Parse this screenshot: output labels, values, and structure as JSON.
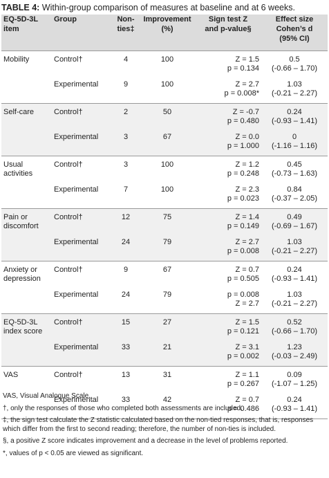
{
  "caption": {
    "label": "TABLE 4:",
    "text": " Within-group comparison of measures at baseline and at 6 weeks."
  },
  "headers": {
    "item": [
      "EQ-5D-3L",
      "item"
    ],
    "group": "Group",
    "nonties": [
      "Non-",
      "ties‡"
    ],
    "improvement": [
      "Improvement",
      "(%)"
    ],
    "signtest": [
      "Sign test Z",
      "and p-value§"
    ],
    "effect": [
      "Effect size",
      "Cohen’s d",
      "(95% CI)"
    ]
  },
  "rows": [
    {
      "item": [
        "Mobility"
      ],
      "control": {
        "group": "Control†",
        "nonties": "4",
        "improvement": "100",
        "z": "Z = 1.5",
        "p": "p = 0.134",
        "d": "0.5",
        "ci": "(-0.66 – 1.70)"
      },
      "experimental": {
        "group": "Experimental",
        "nonties": "9",
        "improvement": "100",
        "z": "Z = 2.7",
        "p": "p = 0.008*",
        "d": "1.03",
        "ci": "(-0.21 – 2.27)"
      }
    },
    {
      "item": [
        "Self-care"
      ],
      "control": {
        "group": "Control†",
        "nonties": "2",
        "improvement": "50",
        "z": "Z = -0.7",
        "p": "p = 0.480",
        "d": "0.24",
        "ci": "(-0.93 – 1.41)"
      },
      "experimental": {
        "group": "Experimental",
        "nonties": "3",
        "improvement": "67",
        "z": "Z = 0.0",
        "p": "p = 1.000",
        "d": "0",
        "ci": "(-1.16 – 1.16)"
      }
    },
    {
      "item": [
        "Usual",
        "activities"
      ],
      "control": {
        "group": "Control†",
        "nonties": "3",
        "improvement": "100",
        "z": "Z = 1.2",
        "p": "p = 0.248",
        "d": "0.45",
        "ci": "(-0.73 – 1.63)"
      },
      "experimental": {
        "group": "Experimental",
        "nonties": "7",
        "improvement": "100",
        "z": "Z = 2.3",
        "p": "p = 0.023",
        "d": "0.84",
        "ci": "(-0.37 – 2.05)"
      }
    },
    {
      "item": [
        "Pain or",
        "discomfort"
      ],
      "control": {
        "group": "Control†",
        "nonties": "12",
        "improvement": "75",
        "z": "Z = 1.4",
        "p": "p = 0.149",
        "d": "0.49",
        "ci": "(-0.69 – 1.67)"
      },
      "experimental": {
        "group": "Experimental",
        "nonties": "24",
        "improvement": "79",
        "z": "Z = 2.7",
        "p": "p = 0.008",
        "d": "1.03",
        "ci": "(-0.21 – 2.27)"
      }
    },
    {
      "item": [
        "Anxiety or",
        "depression"
      ],
      "control": {
        "group": "Control†",
        "nonties": "9",
        "improvement": "67",
        "z": "Z = 0.7",
        "p": "p = 0.505",
        "d": "0.24",
        "ci": "(-0.93 – 1.41)"
      },
      "experimental": {
        "group": "Experimental",
        "nonties": "24",
        "improvement": "79",
        "z": "p = 0.008",
        "p": "Z = 2.7",
        "d": "1.03",
        "ci": "(-0.21 – 2.27)"
      }
    },
    {
      "item": [
        "EQ-5D-3L",
        "index score"
      ],
      "control": {
        "group": "Control†",
        "nonties": "15",
        "improvement": "27",
        "z": "Z = 1.5",
        "p": "p = 0.121",
        "d": "0.52",
        "ci": "(-0.66 – 1.70)"
      },
      "experimental": {
        "group": "Experimental",
        "nonties": "33",
        "improvement": "21",
        "z": "Z = 3.1",
        "p": "p = 0.002",
        "d": "1.23",
        "ci": "(-0.03 – 2.49)"
      }
    },
    {
      "item": [
        "VAS"
      ],
      "control": {
        "group": "Control†",
        "nonties": "13",
        "improvement": "31",
        "z": "Z = 1.1",
        "p": "p = 0.267",
        "d": "0.09",
        "ci": "(-1.07 – 1.25)"
      },
      "experimental": {
        "group": "Experimental",
        "nonties": "33",
        "improvement": "42",
        "z": "Z = 0.7",
        "p": "p = 0.486",
        "d": "0.24",
        "ci": "(-0.93 – 1.41)"
      }
    }
  ],
  "notes": [
    "VAS, Visual Analogue Scale.",
    "†, only the responses of those who completed both assessments are included.",
    "‡, the sign test calculate the Z statistic calculated based on the non-tied responses, that is, responses which differ from the first to second reading; therefore, the number of non-ties is included.",
    "§, a positive Z score indicates improvement and a decrease in the level of problems reported.",
    "*, values of p < 0.05 are viewed as significant."
  ]
}
